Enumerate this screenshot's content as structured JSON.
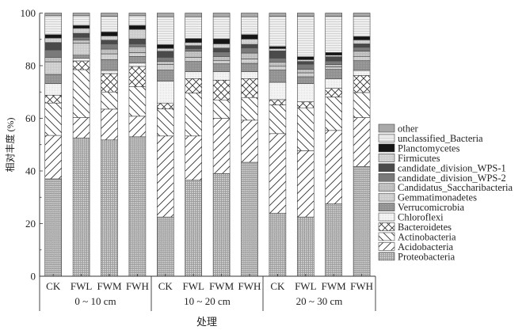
{
  "chart_data": {
    "type": "bar",
    "stacked": true,
    "title": "",
    "xlabel": "处理",
    "ylabel": "相对丰度 (%)",
    "ylim": [
      0,
      100
    ],
    "yticks": [
      0,
      20,
      40,
      60,
      80,
      100
    ],
    "grid": false,
    "legend_position": "right",
    "groups": [
      {
        "label": "0 ~ 10 cm",
        "categories": [
          "CK",
          "FWL",
          "FWM",
          "FWH"
        ]
      },
      {
        "label": "10 ~ 20 cm",
        "categories": [
          "CK",
          "FWL",
          "FWM",
          "FWH"
        ]
      },
      {
        "label": "20 ~ 30 cm",
        "categories": [
          "CK",
          "FWL",
          "FWM",
          "FWH"
        ]
      }
    ],
    "series": [
      {
        "name": "Proteobacteria",
        "values": [
          37,
          52.5,
          51.8,
          53,
          22.5,
          36.5,
          39,
          43.3,
          23.9,
          22.5,
          27.5,
          41.7
        ]
      },
      {
        "name": "Acidobacteria",
        "values": [
          16.5,
          7.8,
          11.7,
          7.8,
          30.8,
          16.8,
          21,
          16,
          30.3,
          25.2,
          27.9,
          18.6
        ]
      },
      {
        "name": "Actinobacteria",
        "values": [
          12.3,
          18.2,
          6.5,
          11.2,
          10.3,
          16.3,
          7,
          8.6,
          10.9,
          16.3,
          12.7,
          9.5
        ]
      },
      {
        "name": "Bacteroidetes",
        "values": [
          3,
          3.3,
          7,
          7.7,
          2.2,
          5.5,
          7.5,
          7.2,
          2,
          2.3,
          3.3,
          6.5
        ]
      },
      {
        "name": "Chloroflexi",
        "values": [
          4.4,
          1,
          1.2,
          1.3,
          8.3,
          2.6,
          3.2,
          2.6,
          6.6,
          6.9,
          3.6,
          1.9
        ]
      },
      {
        "name": "Verrucomicrobia",
        "values": [
          3.5,
          1.2,
          4.1,
          2.5,
          4.2,
          3.9,
          3,
          3.2,
          4.6,
          2.6,
          3.6,
          3.7
        ]
      },
      {
        "name": "Gemmatimonadetes",
        "values": [
          4.8,
          4.5,
          2.2,
          1.5,
          2.2,
          1.6,
          1.2,
          1.7,
          1.6,
          1.5,
          1,
          1.5
        ]
      },
      {
        "name": "Candidatus_Saccharibacteria",
        "values": [
          1.7,
          1.3,
          1.8,
          2.2,
          1.1,
          2.3,
          1.6,
          2.2,
          1.5,
          1.3,
          0.8,
          2.1
        ]
      },
      {
        "name": "candidate_division_WPS-2",
        "values": [
          2.8,
          1,
          2,
          1.1,
          1.6,
          1,
          1.7,
          2,
          1.5,
          2,
          1.4,
          1.5
        ]
      },
      {
        "name": "candidate_division_WPS-1",
        "values": [
          2.8,
          1.5,
          1.4,
          1.9,
          2.3,
          1.1,
          1.5,
          1.3,
          2.7,
          1,
          1.6,
          1.3
        ]
      },
      {
        "name": "Firmicutes",
        "values": [
          1.7,
          1.9,
          1.6,
          3.6,
          1.1,
          1.2,
          1.6,
          2,
          0.9,
          0.7,
          0.6,
          1.5
        ]
      },
      {
        "name": "Planctomycetes",
        "values": [
          1.3,
          1.1,
          1.5,
          1.5,
          1.4,
          1.5,
          1.9,
          1.7,
          0.8,
          1.1,
          1,
          1.3
        ]
      },
      {
        "name": "unclassified_Bacteria",
        "values": [
          7.2,
          3.7,
          6,
          3.7,
          10.6,
          8.3,
          8.4,
          6.8,
          11.5,
          15.4,
          13.8,
          7.7
        ]
      },
      {
        "name": "other",
        "values": [
          1,
          1,
          1.2,
          1,
          1.4,
          1.4,
          1.4,
          1.4,
          1.2,
          1.2,
          1.2,
          1.2
        ]
      }
    ],
    "legend_order": [
      "other",
      "unclassified_Bacteria",
      "Planctomycetes",
      "Firmicutes",
      "candidate_division_WPS-1",
      "candidate_division_WPS-2",
      "Candidatus_Saccharibacteria",
      "Gemmatimonadetes",
      "Verrucomicrobia",
      "Chloroflexi",
      "Bacteroidetes",
      "Actinobacteria",
      "Acidobacteria",
      "Proteobacteria"
    ]
  }
}
